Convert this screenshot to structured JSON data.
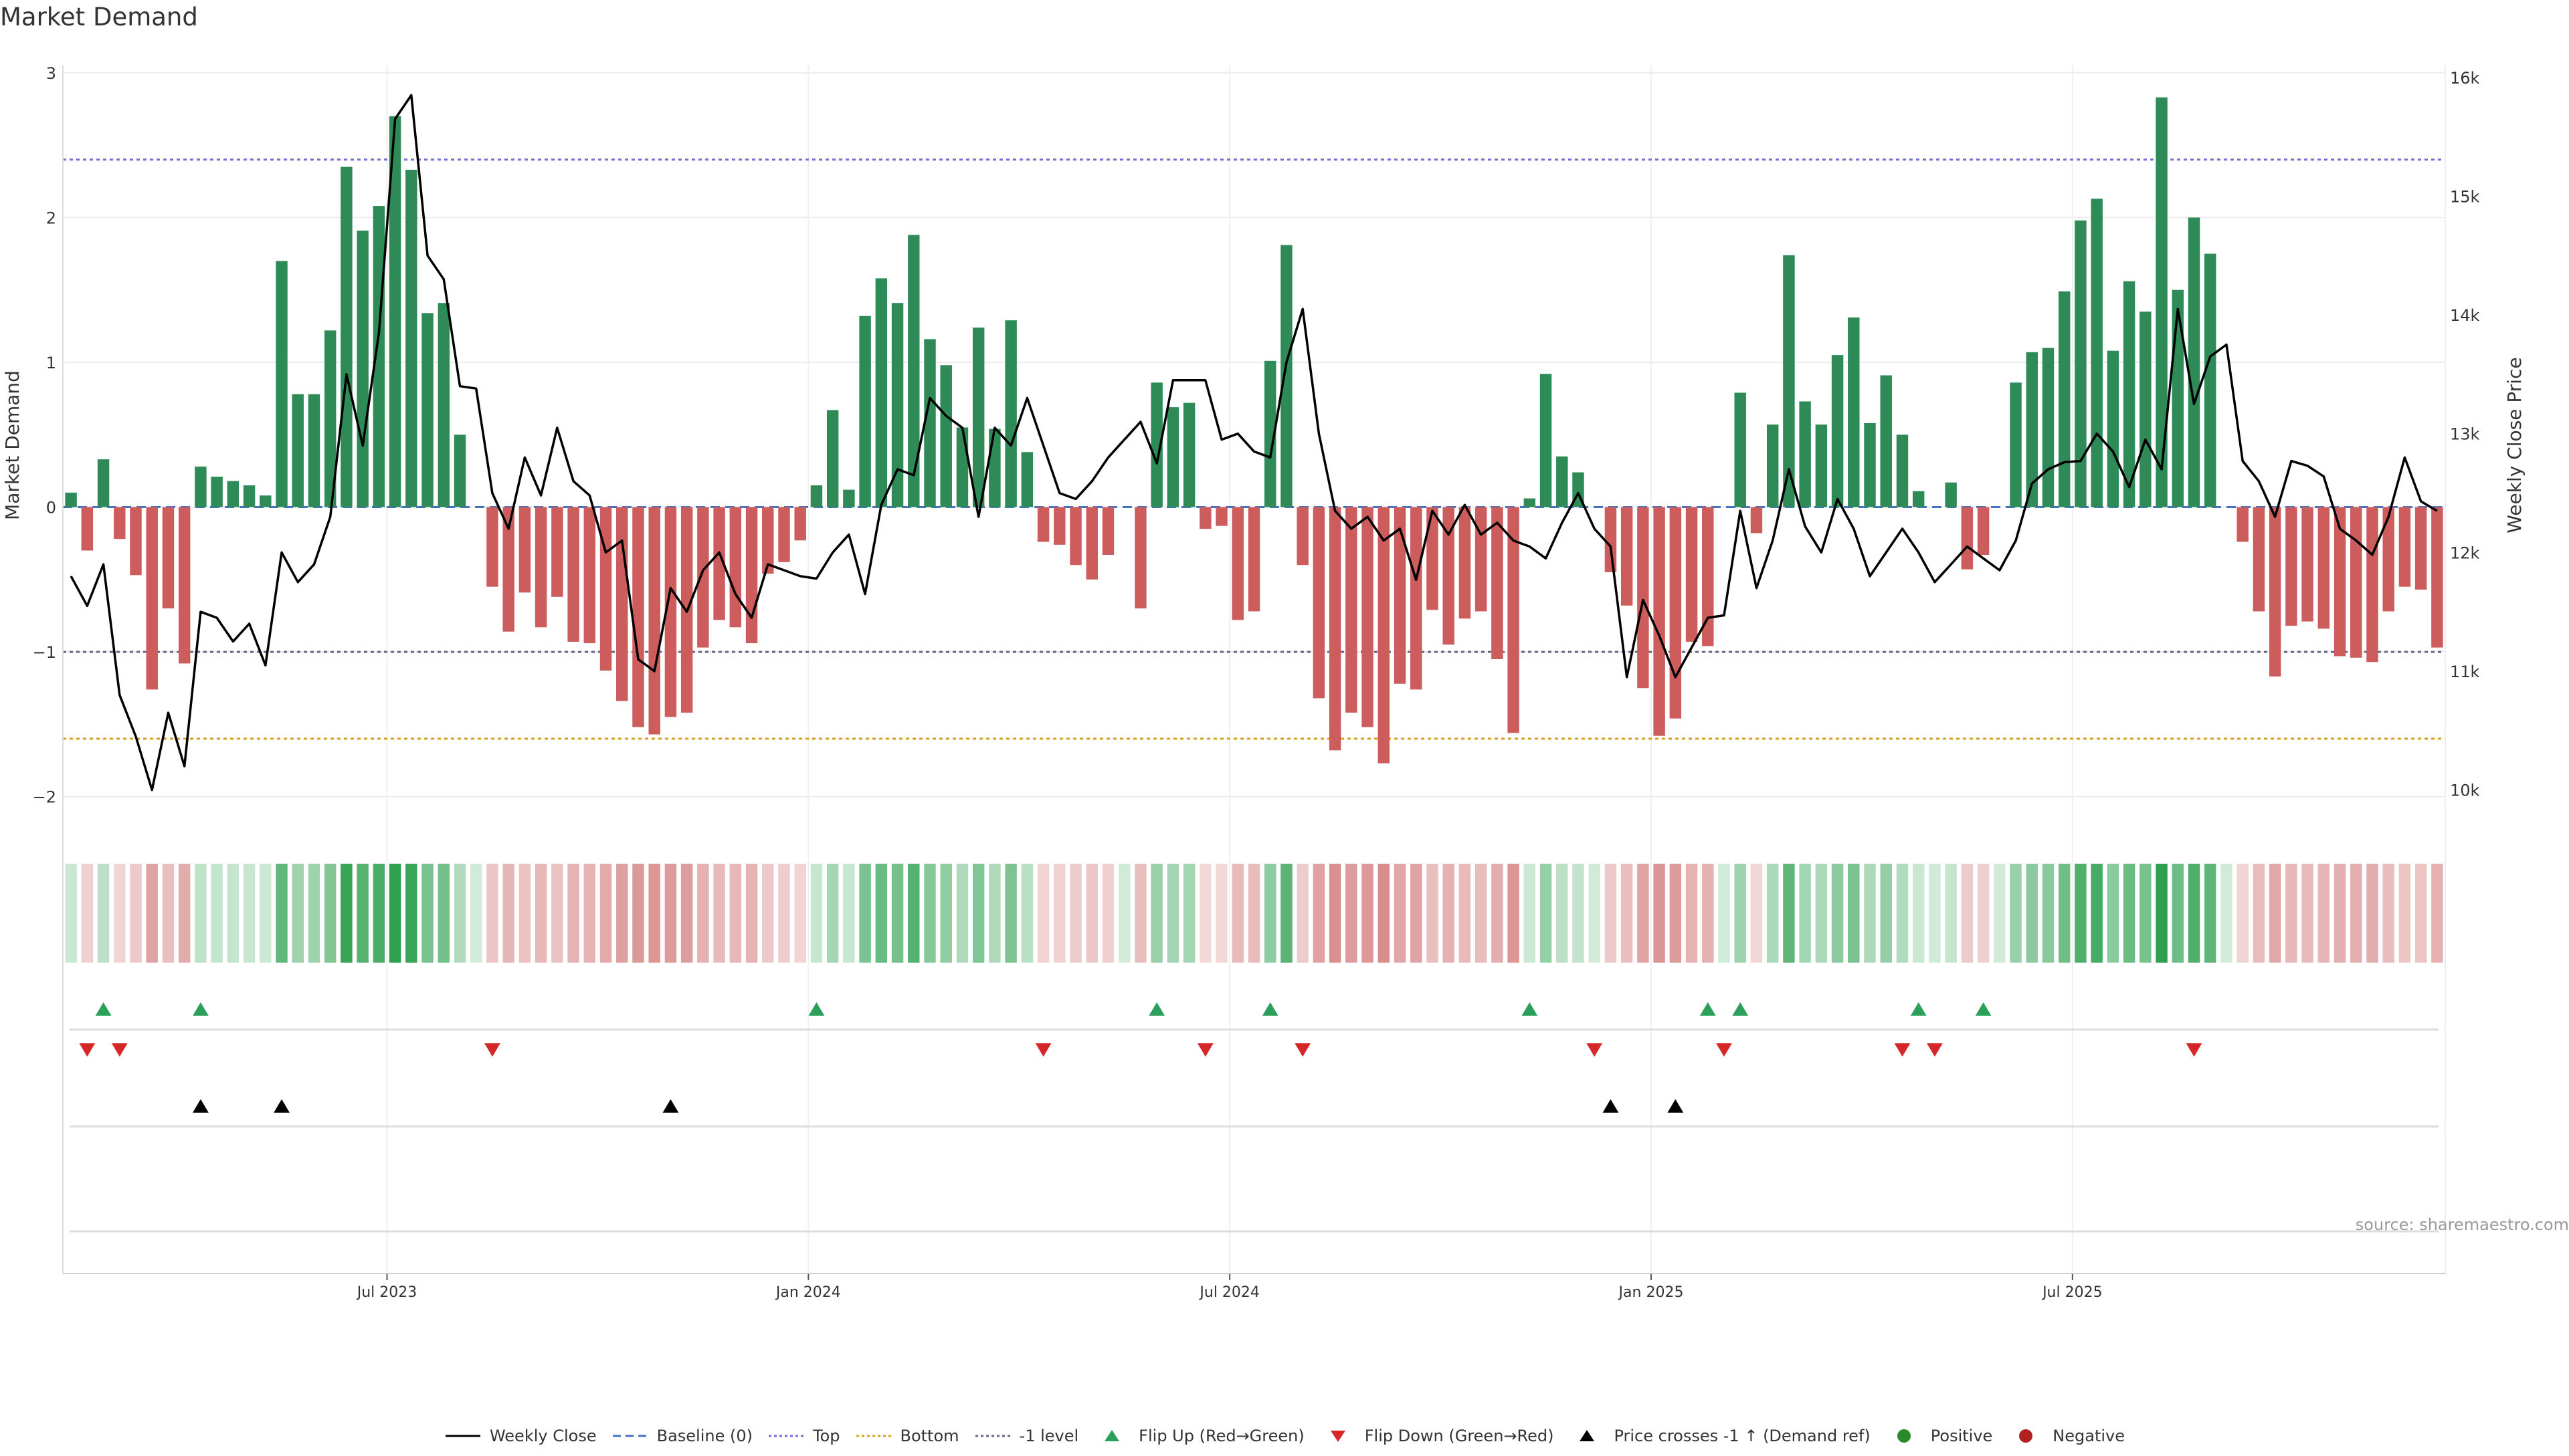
{
  "chart_data": {
    "type": "bar",
    "title": "Market Demand",
    "ylabel": "Market Demand",
    "y2label": "Weekly Close Price",
    "ylim": [
      -2.2,
      3.05
    ],
    "y2lim": [
      9700,
      16100
    ],
    "y_ticks": [
      3,
      2,
      1,
      0,
      -1,
      -2
    ],
    "y_tick_labels": [
      "3",
      "2",
      "1",
      "0",
      "−1",
      "−2"
    ],
    "y2_ticks": [
      16000,
      15000,
      14000,
      13000,
      12000,
      11000,
      10000
    ],
    "y2_tick_labels": [
      "16k",
      "15k",
      "14k",
      "13k",
      "12k",
      "11k",
      "10k"
    ],
    "x_ticks": [
      {
        "label": "Jul 2023",
        "index": 20
      },
      {
        "label": "Jan 2024",
        "index": 46
      },
      {
        "label": "Jul 2024",
        "index": 72
      },
      {
        "label": "Jan 2025",
        "index": 98
      },
      {
        "label": "Jul 2025",
        "index": 124
      }
    ],
    "reference_lines": [
      {
        "name": "Baseline (0)",
        "value": 0,
        "color": "#4472c4",
        "style": "dashed"
      },
      {
        "name": "Top",
        "value": 2.4,
        "color": "#7070d8",
        "style": "dotted"
      },
      {
        "name": "Bottom",
        "value": -1.6,
        "color": "#d4a020",
        "style": "dotted"
      },
      {
        "name": "-1 level",
        "value": -1.0,
        "color": "#666688",
        "style": "dotted"
      }
    ],
    "series": [
      {
        "name": "Market Demand",
        "type": "bar",
        "values": [
          0.1,
          -0.3,
          0.33,
          -0.22,
          -0.47,
          -1.26,
          -0.7,
          -1.08,
          0.28,
          0.21,
          0.18,
          0.15,
          0.08,
          1.7,
          0.78,
          0.78,
          1.22,
          2.35,
          1.91,
          2.08,
          2.7,
          2.33,
          1.34,
          1.41,
          0.5,
          0,
          -0.55,
          -0.86,
          -0.59,
          -0.83,
          -0.62,
          -0.93,
          -0.94,
          -1.13,
          -1.34,
          -1.52,
          -1.57,
          -1.45,
          -1.42,
          -0.97,
          -0.78,
          -0.83,
          -0.94,
          -0.46,
          -0.38,
          -0.23,
          0.15,
          0.67,
          0.12,
          1.32,
          1.58,
          1.41,
          1.88,
          1.16,
          0.98,
          0.55,
          1.24,
          0.54,
          1.29,
          0.38,
          -0.24,
          -0.26,
          -0.4,
          -0.5,
          -0.33,
          0,
          -0.7,
          0.86,
          0.69,
          0.72,
          -0.15,
          -0.13,
          -0.78,
          -0.72,
          1.01,
          1.81,
          -0.4,
          -1.32,
          -1.68,
          -1.42,
          -1.52,
          -1.77,
          -1.22,
          -1.26,
          -0.71,
          -0.95,
          -0.77,
          -0.72,
          -1.05,
          -1.56,
          0.06,
          0.92,
          0.35,
          0.24,
          0,
          -0.45,
          -0.68,
          -1.25,
          -1.58,
          -1.46,
          -0.93,
          -0.96,
          0,
          0.79,
          -0.18,
          0.57,
          1.74,
          0.73,
          0.57,
          1.05,
          1.31,
          0.58,
          0.91,
          0.5,
          0.11,
          0,
          0.17,
          -0.43,
          -0.33,
          0,
          0.86,
          1.07,
          1.1,
          1.49,
          1.98,
          2.13,
          1.08,
          1.56,
          1.35,
          2.83,
          1.5,
          2.0,
          1.75,
          0,
          -0.24,
          -0.72,
          -1.17,
          -0.82,
          -0.79,
          -0.84,
          -1.03,
          -1.04,
          -1.07,
          -0.72,
          -0.55,
          -0.57,
          -0.97
        ]
      },
      {
        "name": "Weekly Close",
        "type": "line",
        "axis": "right",
        "values": [
          11800,
          11550,
          11900,
          10800,
          10450,
          10000,
          10650,
          10200,
          11500,
          11450,
          11250,
          11400,
          11050,
          12000,
          11750,
          11900,
          12300,
          13500,
          12900,
          13850,
          15650,
          15850,
          14500,
          14300,
          13400,
          13380,
          12500,
          12200,
          12800,
          12480,
          13050,
          12600,
          12480,
          12000,
          12100,
          11100,
          11000,
          11700,
          11500,
          11850,
          12000,
          11650,
          11450,
          11900,
          11850,
          11800,
          11780,
          12000,
          12150,
          11650,
          12400,
          12700,
          12650,
          13300,
          13150,
          13050,
          12300,
          13050,
          12900,
          13300,
          12900,
          12500,
          12450,
          12600,
          12800,
          12950,
          13100,
          12750,
          13450,
          13450,
          13450,
          12950,
          13000,
          12850,
          12800,
          13600,
          14050,
          13000,
          12350,
          12200,
          12300,
          12100,
          12200,
          11770,
          12350,
          12150,
          12400,
          12150,
          12250,
          12100,
          12050,
          11950,
          12250,
          12500,
          12200,
          12050,
          10950,
          11600,
          11300,
          10950,
          11200,
          11450,
          11470,
          12350,
          11700,
          12100,
          12700,
          12220,
          12000,
          12450,
          12200,
          11800,
          12000,
          12200,
          12000,
          11750,
          11900,
          12050,
          11950,
          11850,
          12100,
          12580,
          12700,
          12760,
          12770,
          13000,
          12850,
          12550,
          12950,
          12700,
          14050,
          13250,
          13650,
          13750,
          12770,
          12600,
          12300,
          12770,
          12730,
          12640,
          12200,
          12100,
          11980,
          12300,
          12800,
          12430,
          12350
        ]
      }
    ],
    "heat_strip": {
      "name": "Demand intensity strip"
    },
    "flip_up_indices": [
      2,
      8,
      46,
      67,
      74,
      90,
      101,
      103,
      114,
      118
    ],
    "flip_down_indices": [
      1,
      3,
      26,
      60,
      70,
      76,
      94,
      102,
      113,
      115,
      131
    ],
    "price_cross_indices": [
      8,
      13,
      37,
      95,
      99
    ],
    "legend": [
      {
        "label": "Weekly Close",
        "kind": "line",
        "color": "#000000"
      },
      {
        "label": "Baseline (0)",
        "kind": "dashed",
        "color": "#4472c4"
      },
      {
        "label": "Top",
        "kind": "dotted",
        "color": "#7070d8"
      },
      {
        "label": "Bottom",
        "kind": "dotted",
        "color": "#d4a020"
      },
      {
        "label": "-1 level",
        "kind": "dotted",
        "color": "#666688"
      },
      {
        "label": "Flip Up (Red→Green)",
        "kind": "tri-up",
        "color": "#2ca05a"
      },
      {
        "label": "Flip Down (Green→Red)",
        "kind": "tri-down",
        "color": "#d62728"
      },
      {
        "label": "Price crosses -1 ↑ (Demand ref)",
        "kind": "tri-up",
        "color": "#000000"
      },
      {
        "label": "Positive",
        "kind": "dot",
        "color": "#2a8a2a"
      },
      {
        "label": "Negative",
        "kind": "dot",
        "color": "#b02020"
      }
    ],
    "source": "source: sharemaestro.com",
    "colors": {
      "positive": "#2e8b57",
      "negative": "#cd5c5c",
      "price": "#000000"
    }
  }
}
